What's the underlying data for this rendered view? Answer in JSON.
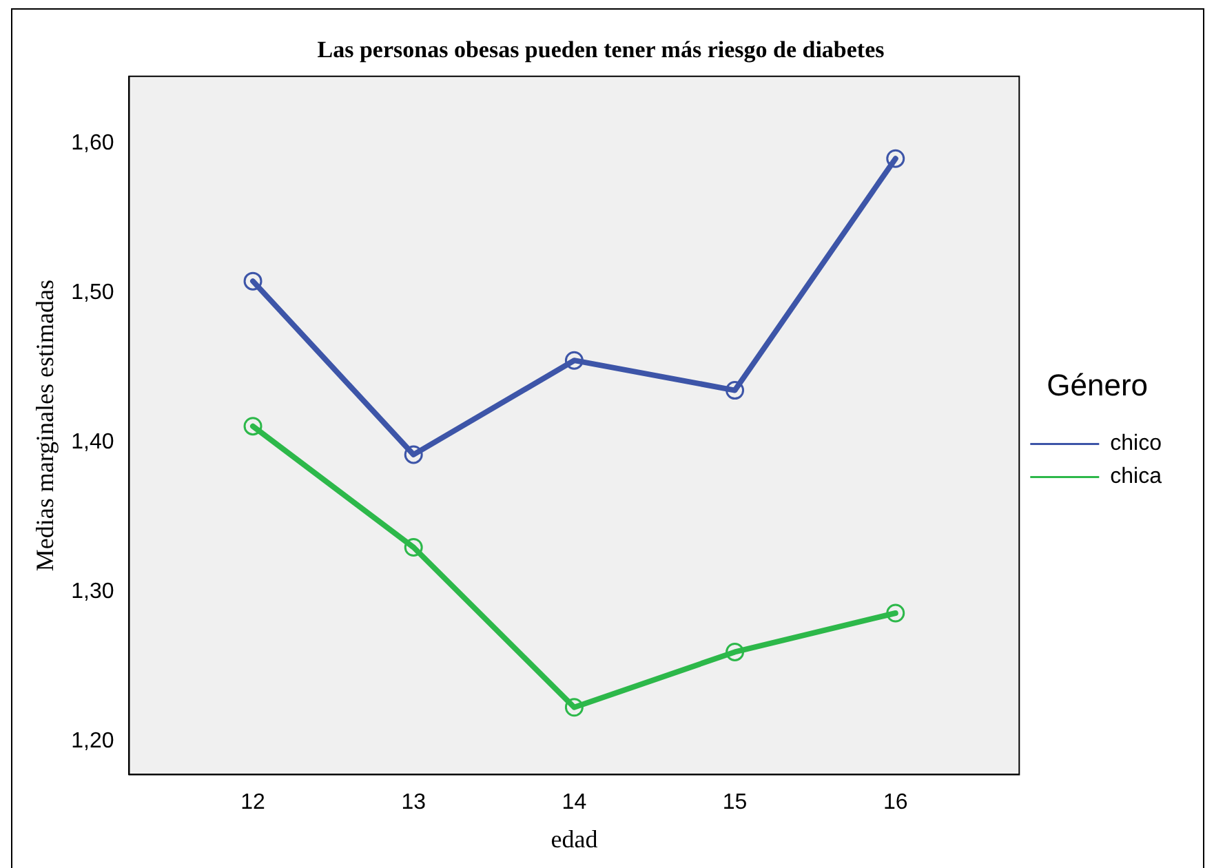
{
  "chart_data": {
    "type": "line",
    "title": "Las personas obesas pueden tener más riesgo de diabetes",
    "xlabel": "edad",
    "ylabel": "Medias marginales estimadas",
    "legend_title": "Género",
    "x": [
      12,
      13,
      14,
      15,
      16
    ],
    "series": [
      {
        "name": "chico",
        "color": "#3d55a8",
        "values": [
          1.508,
          1.392,
          1.455,
          1.435,
          1.59
        ]
      },
      {
        "name": "chica",
        "color": "#2db84a",
        "values": [
          1.411,
          1.33,
          1.223,
          1.26,
          1.286
        ]
      }
    ],
    "xlim": [
      11.23,
      16.77
    ],
    "xticks": [
      12,
      13,
      14,
      15,
      16
    ],
    "ylim": [
      1.178,
      1.645
    ],
    "yticks": [
      {
        "value": 1.2,
        "label": "1,20"
      },
      {
        "value": 1.3,
        "label": "1,30"
      },
      {
        "value": 1.4,
        "label": "1,40"
      },
      {
        "value": 1.5,
        "label": "1,50"
      },
      {
        "value": 1.6,
        "label": "1,60"
      }
    ],
    "grid": false,
    "legend": "right",
    "marker": "circle",
    "line_style": "solid"
  }
}
